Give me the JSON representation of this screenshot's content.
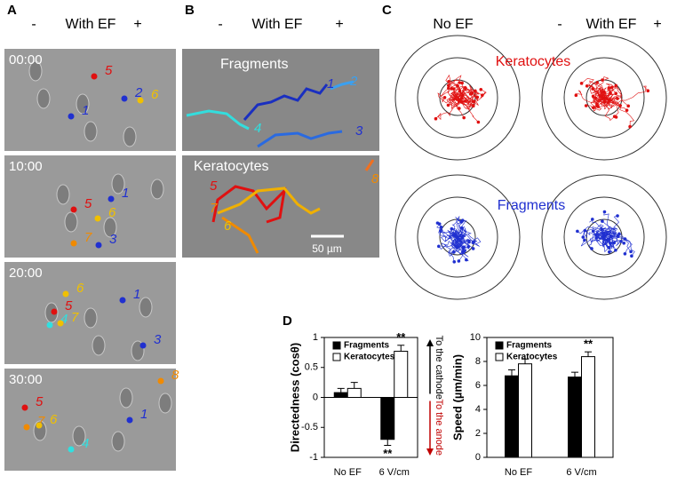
{
  "panel_a": {
    "label": "A",
    "header": {
      "minus": "-",
      "title": "With EF",
      "plus": "+"
    },
    "frames": [
      {
        "time": "00:00",
        "cells": [
          "5",
          "2",
          "6",
          "1"
        ]
      },
      {
        "time": "10:00",
        "cells": [
          "5",
          "1",
          "6",
          "3",
          "7"
        ]
      },
      {
        "time": "20:00",
        "cells": [
          "6",
          "5",
          "4",
          "7",
          "1",
          "3"
        ]
      },
      {
        "time": "30:00",
        "cells": [
          "8",
          "5",
          "7",
          "6",
          "1",
          "4"
        ]
      }
    ]
  },
  "panel_b": {
    "label": "B",
    "header": {
      "minus": "-",
      "title": "With EF",
      "plus": "+"
    },
    "fragments": {
      "title": "Fragments",
      "cells": [
        "1",
        "2",
        "4",
        "3"
      ]
    },
    "keratocytes": {
      "title": "Keratocytes",
      "cells": [
        "8",
        "5",
        "7",
        "6"
      ]
    },
    "scale_bar": "50 µm"
  },
  "panel_c": {
    "label": "C",
    "no_ef": "No EF",
    "header": {
      "minus": "-",
      "title": "With EF",
      "plus": "+"
    },
    "keratocytes": "Keratocytes",
    "fragments": "Fragments"
  },
  "panel_d": {
    "label": "D"
  },
  "chart_data": [
    {
      "type": "bar",
      "ylabel": "Directedness (cosθ)",
      "categories": [
        "No EF",
        "6 V/cm"
      ],
      "series": [
        {
          "name": "Fragments",
          "color": "#000000",
          "values": [
            0.08,
            -0.7
          ],
          "errors": [
            0.07,
            0.1
          ],
          "significance": [
            null,
            "**"
          ]
        },
        {
          "name": "Keratocytes",
          "color": "#ffffff",
          "values": [
            0.15,
            0.77
          ],
          "errors": [
            0.1,
            0.1
          ],
          "significance": [
            null,
            "**"
          ]
        }
      ],
      "ylim": [
        -1,
        1
      ],
      "yticks": [
        1,
        0.5,
        0,
        -0.5,
        -1
      ],
      "cathode_label": "To the cathode",
      "anode_label": "To the anode"
    },
    {
      "type": "bar",
      "ylabel": "Speed (µm/min)",
      "categories": [
        "No EF",
        "6 V/cm"
      ],
      "series": [
        {
          "name": "Fragments",
          "color": "#000000",
          "values": [
            6.8,
            6.7
          ],
          "errors": [
            0.5,
            0.4
          ],
          "significance": [
            null,
            null
          ]
        },
        {
          "name": "Keratocytes",
          "color": "#ffffff",
          "values": [
            7.8,
            8.4
          ],
          "errors": [
            0.4,
            0.4
          ],
          "significance": [
            null,
            "**"
          ]
        }
      ],
      "ylim": [
        0,
        10
      ],
      "yticks": [
        0,
        2,
        4,
        6,
        8,
        10
      ]
    }
  ]
}
